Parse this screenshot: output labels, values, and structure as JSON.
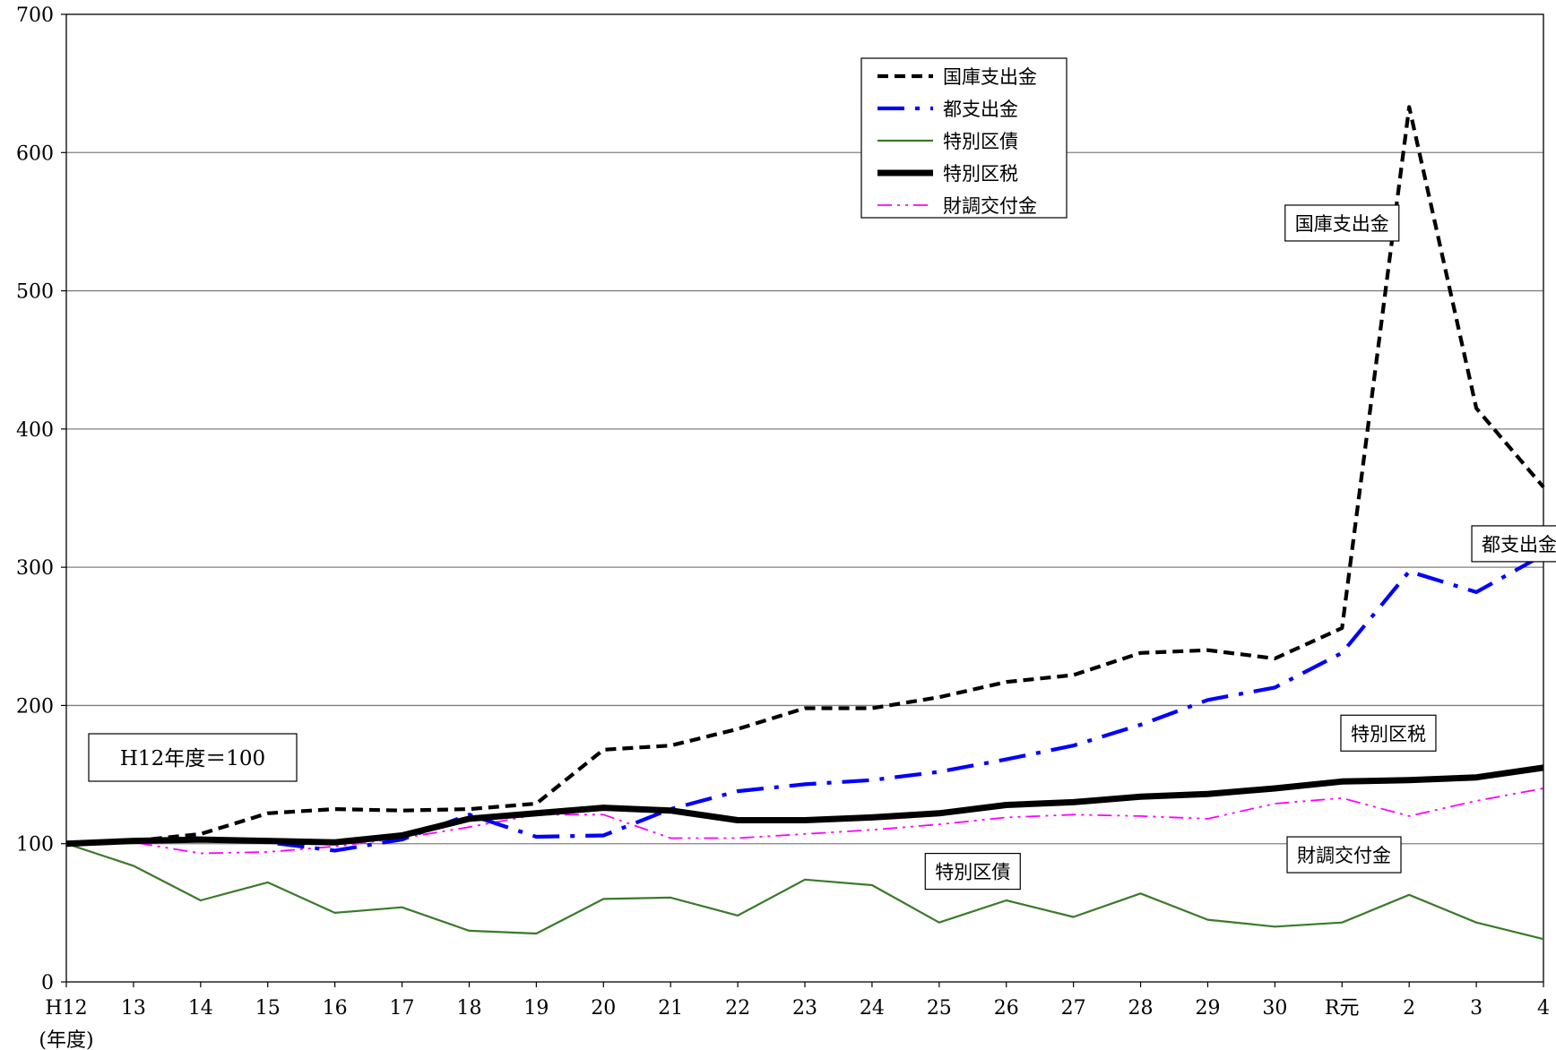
{
  "chart_data": {
    "type": "line",
    "categories": [
      "H12",
      "13",
      "14",
      "15",
      "16",
      "17",
      "18",
      "19",
      "20",
      "21",
      "22",
      "23",
      "24",
      "25",
      "26",
      "27",
      "28",
      "29",
      "30",
      "R元",
      "2",
      "3",
      "4"
    ],
    "xlabel": "(年度)",
    "ylim": [
      0,
      700
    ],
    "yticks": [
      0,
      100,
      200,
      300,
      400,
      500,
      600,
      700
    ],
    "grid": true,
    "legend_position": "top-center",
    "baseline_note": "H12年度＝100",
    "series": [
      {
        "name": "国庫支出金",
        "style": "dashed",
        "color": "#000000",
        "values": [
          100,
          102,
          107,
          122,
          125,
          124,
          125,
          129,
          168,
          171,
          183,
          198,
          198,
          206,
          217,
          222,
          238,
          240,
          234,
          256,
          633,
          415,
          358
        ]
      },
      {
        "name": "都支出金",
        "style": "dashdot",
        "color": "#0000ff",
        "values": [
          100,
          102,
          104,
          101,
          95,
          103,
          121,
          105,
          106,
          125,
          138,
          143,
          146,
          152,
          161,
          171,
          186,
          204,
          213,
          238,
          297,
          282,
          309
        ]
      },
      {
        "name": "特別区債",
        "style": "thin",
        "color": "#3a7a2a",
        "values": [
          100,
          84,
          59,
          72,
          50,
          54,
          37,
          35,
          60,
          61,
          48,
          74,
          70,
          43,
          59,
          47,
          64,
          45,
          40,
          43,
          63,
          43,
          31
        ]
      },
      {
        "name": "特別区税",
        "style": "thick",
        "color": "#000000",
        "values": [
          100,
          102,
          103,
          102,
          101,
          106,
          118,
          122,
          126,
          124,
          117,
          117,
          119,
          122,
          128,
          130,
          134,
          136,
          140,
          145,
          146,
          148,
          155
        ]
      },
      {
        "name": "財調交付金",
        "style": "dashdotdot",
        "color": "#ff00ff",
        "values": [
          100,
          101,
          93,
          94,
          98,
          104,
          112,
          121,
          121,
          104,
          104,
          107,
          110,
          114,
          119,
          121,
          120,
          118,
          129,
          133,
          120,
          131,
          140
        ]
      }
    ],
    "annotations": [
      {
        "text": "国庫支出金",
        "series": "国庫支出金"
      },
      {
        "text": "都支出金",
        "series": "都支出金"
      },
      {
        "text": "特別区税",
        "series": "特別区税"
      },
      {
        "text": "財調交付金",
        "series": "財調交付金"
      },
      {
        "text": "特別区債",
        "series": "特別区債"
      }
    ]
  }
}
